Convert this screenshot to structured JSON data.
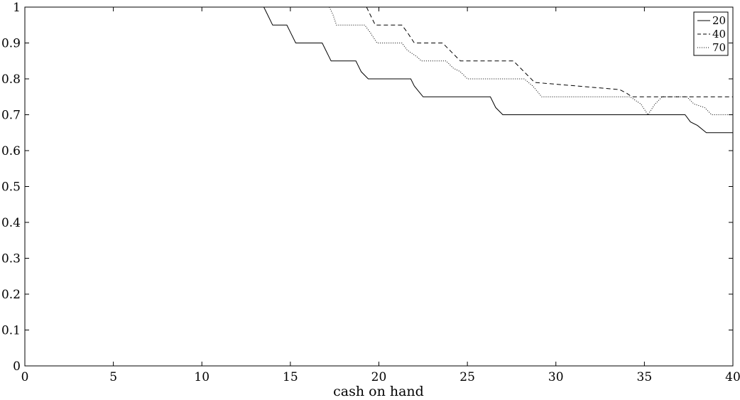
{
  "chart_data": {
    "type": "line",
    "title": "",
    "xlabel": "cash on hand",
    "ylabel": "",
    "xlim": [
      0,
      40
    ],
    "ylim": [
      0,
      1
    ],
    "xticks": [
      0,
      5,
      10,
      15,
      20,
      25,
      30,
      35,
      40
    ],
    "yticks": [
      0,
      0.1,
      0.2,
      0.3,
      0.4,
      0.5,
      0.6,
      0.7,
      0.8,
      0.9,
      1
    ],
    "grid": false,
    "legend_position": "top-right",
    "series": [
      {
        "name": "20",
        "line_style": "solid",
        "color": "#000000",
        "x": [
          0,
          13.5,
          13.7,
          14.0,
          14.8,
          15.0,
          15.3,
          16.8,
          17.0,
          17.3,
          18.7,
          19.0,
          19.4,
          21.8,
          22.0,
          22.5,
          26.3,
          26.6,
          27.0,
          37.3,
          37.6,
          38.0,
          38.5,
          40
        ],
        "y": [
          1.0,
          1.0,
          0.98,
          0.95,
          0.95,
          0.93,
          0.9,
          0.9,
          0.88,
          0.85,
          0.85,
          0.82,
          0.8,
          0.8,
          0.78,
          0.75,
          0.75,
          0.72,
          0.7,
          0.7,
          0.68,
          0.67,
          0.65,
          0.65
        ]
      },
      {
        "name": "40",
        "line_style": "dashed",
        "color": "#000000",
        "x": [
          19.3,
          19.6,
          19.8,
          21.3,
          21.6,
          22.0,
          23.6,
          24.0,
          24.6,
          27.6,
          28.2,
          28.8,
          33.6,
          34.0,
          34.3,
          40
        ],
        "y": [
          1.0,
          0.97,
          0.95,
          0.95,
          0.93,
          0.9,
          0.9,
          0.88,
          0.85,
          0.85,
          0.82,
          0.79,
          0.77,
          0.76,
          0.75,
          0.75
        ]
      },
      {
        "name": "70",
        "line_style": "dotted",
        "color": "#000000",
        "x": [
          17.2,
          17.4,
          17.6,
          19.2,
          19.5,
          19.9,
          21.3,
          21.6,
          22.2,
          22.4,
          23.8,
          24.2,
          24.6,
          25.0,
          28.2,
          28.7,
          29.2,
          34.2,
          34.8,
          35.2,
          35.6,
          36.0,
          37.4,
          37.8,
          38.4,
          38.8,
          40
        ],
        "y": [
          1.0,
          0.98,
          0.95,
          0.95,
          0.93,
          0.9,
          0.9,
          0.88,
          0.86,
          0.85,
          0.85,
          0.83,
          0.82,
          0.8,
          0.8,
          0.78,
          0.75,
          0.75,
          0.73,
          0.7,
          0.73,
          0.75,
          0.75,
          0.73,
          0.72,
          0.7,
          0.7
        ]
      }
    ]
  }
}
